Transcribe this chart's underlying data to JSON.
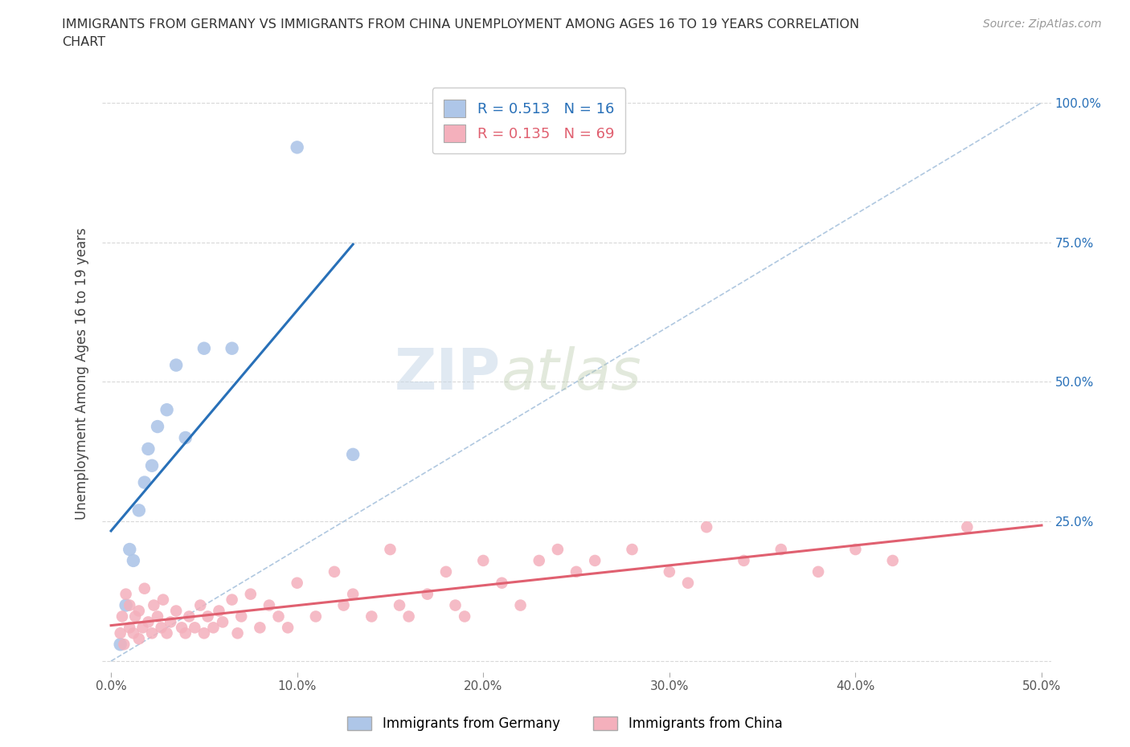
{
  "title_line1": "IMMIGRANTS FROM GERMANY VS IMMIGRANTS FROM CHINA UNEMPLOYMENT AMONG AGES 16 TO 19 YEARS CORRELATION",
  "title_line2": "CHART",
  "source": "Source: ZipAtlas.com",
  "ylabel": "Unemployment Among Ages 16 to 19 years",
  "xlim": [
    -0.005,
    0.505
  ],
  "ylim": [
    -0.02,
    1.05
  ],
  "xticks": [
    0.0,
    0.1,
    0.2,
    0.3,
    0.4,
    0.5
  ],
  "xtick_labels": [
    "0.0%",
    "10.0%",
    "20.0%",
    "30.0%",
    "40.0%",
    "50.0%"
  ],
  "yticks": [
    0.0,
    0.25,
    0.5,
    0.75,
    1.0
  ],
  "ytick_labels_right": [
    "",
    "25.0%",
    "50.0%",
    "75.0%",
    "100.0%"
  ],
  "germany_color": "#aec6e8",
  "germany_line_color": "#2870b8",
  "china_color": "#f4b0bc",
  "china_line_color": "#e06070",
  "germany_R": 0.513,
  "germany_N": 16,
  "china_R": 0.135,
  "china_N": 69,
  "germany_x": [
    0.005,
    0.008,
    0.01,
    0.012,
    0.015,
    0.018,
    0.02,
    0.022,
    0.025,
    0.03,
    0.035,
    0.04,
    0.05,
    0.065,
    0.1,
    0.13
  ],
  "germany_y": [
    0.03,
    0.1,
    0.2,
    0.18,
    0.27,
    0.32,
    0.38,
    0.35,
    0.42,
    0.45,
    0.53,
    0.4,
    0.56,
    0.56,
    0.92,
    0.37
  ],
  "china_x": [
    0.005,
    0.006,
    0.007,
    0.008,
    0.01,
    0.01,
    0.012,
    0.013,
    0.015,
    0.015,
    0.017,
    0.018,
    0.02,
    0.022,
    0.023,
    0.025,
    0.027,
    0.028,
    0.03,
    0.032,
    0.035,
    0.038,
    0.04,
    0.042,
    0.045,
    0.048,
    0.05,
    0.052,
    0.055,
    0.058,
    0.06,
    0.065,
    0.068,
    0.07,
    0.075,
    0.08,
    0.085,
    0.09,
    0.095,
    0.1,
    0.11,
    0.12,
    0.125,
    0.13,
    0.14,
    0.15,
    0.155,
    0.16,
    0.17,
    0.18,
    0.185,
    0.19,
    0.2,
    0.21,
    0.22,
    0.23,
    0.24,
    0.25,
    0.26,
    0.28,
    0.3,
    0.31,
    0.32,
    0.34,
    0.36,
    0.38,
    0.4,
    0.42,
    0.46
  ],
  "china_y": [
    0.05,
    0.08,
    0.03,
    0.12,
    0.06,
    0.1,
    0.05,
    0.08,
    0.04,
    0.09,
    0.06,
    0.13,
    0.07,
    0.05,
    0.1,
    0.08,
    0.06,
    0.11,
    0.05,
    0.07,
    0.09,
    0.06,
    0.05,
    0.08,
    0.06,
    0.1,
    0.05,
    0.08,
    0.06,
    0.09,
    0.07,
    0.11,
    0.05,
    0.08,
    0.12,
    0.06,
    0.1,
    0.08,
    0.06,
    0.14,
    0.08,
    0.16,
    0.1,
    0.12,
    0.08,
    0.2,
    0.1,
    0.08,
    0.12,
    0.16,
    0.1,
    0.08,
    0.18,
    0.14,
    0.1,
    0.18,
    0.2,
    0.16,
    0.18,
    0.2,
    0.16,
    0.14,
    0.24,
    0.18,
    0.2,
    0.16,
    0.2,
    0.18,
    0.24
  ],
  "diag_color": "#b0c8e0",
  "grid_color": "#d8d8d8",
  "watermark_zip": "ZIP",
  "watermark_atlas": "atlas",
  "legend_label_germany": "Immigrants from Germany",
  "legend_label_china": "Immigrants from China"
}
